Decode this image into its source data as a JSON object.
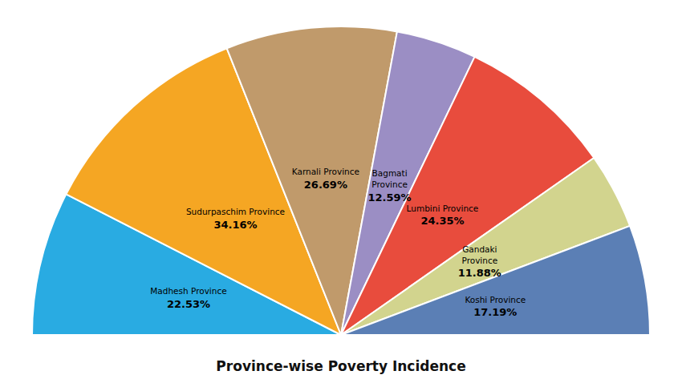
{
  "chart_data": {
    "type": "pie",
    "title": "Province-wise Poverty Incidence",
    "categories": [
      "Madhesh Province",
      "Sudurpaschim Province",
      "Karnali Province",
      "Bagmati\nProvince",
      "Lumbini Province",
      "Gandaki\nProvince",
      "Koshi Province"
    ],
    "values": [
      22.53,
      34.16,
      26.69,
      12.59,
      24.35,
      11.88,
      17.19
    ],
    "value_labels": [
      "22.53%",
      "34.16%",
      "26.69%",
      "12.59%",
      "24.35%",
      "11.88%",
      "17.19%"
    ],
    "colors": [
      "#29ABE2",
      "#F5A623",
      "#C09A6B",
      "#9B8EC4",
      "#E84C3D",
      "#D2D48E",
      "#5B7FB5"
    ],
    "data_labels": true
  }
}
